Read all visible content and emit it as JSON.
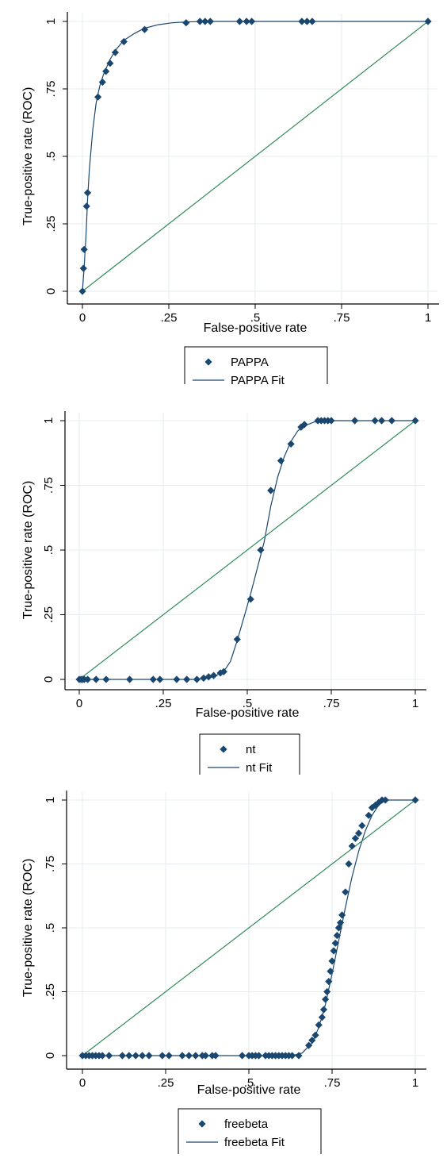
{
  "chart_data": [
    {
      "type": "scatter",
      "xlabel": "False-positive rate",
      "ylabel": "True-positive rate (ROC)",
      "xlim": [
        0,
        1
      ],
      "ylim": [
        0,
        1
      ],
      "x_ticks": [
        "0",
        ".25",
        ".5",
        ".75",
        "1"
      ],
      "y_ticks": [
        "0",
        ".25",
        ".5",
        ".75",
        "1"
      ],
      "grid": true,
      "legend_position": "bottom",
      "series": [
        {
          "name": "PAPPA",
          "kind": "points",
          "marker": "diamond",
          "color": "#1a476f",
          "x": [
            0,
            0.003,
            0.005,
            0.012,
            0.015,
            0.045,
            0.058,
            0.068,
            0.08,
            0.095,
            0.12,
            0.18,
            0.3,
            0.34,
            0.355,
            0.37,
            0.455,
            0.475,
            0.49,
            0.635,
            0.65,
            0.665,
            1.0
          ],
          "y": [
            0,
            0.085,
            0.155,
            0.315,
            0.365,
            0.72,
            0.775,
            0.815,
            0.845,
            0.885,
            0.925,
            0.97,
            0.995,
            1,
            1,
            1,
            1,
            1,
            1,
            1,
            1,
            1,
            1
          ]
        },
        {
          "name": "PAPPA Fit",
          "kind": "line",
          "color": "#1a476f",
          "x": [
            0,
            0.005,
            0.01,
            0.015,
            0.02,
            0.03,
            0.04,
            0.05,
            0.06,
            0.07,
            0.08,
            0.1,
            0.12,
            0.15,
            0.18,
            0.22,
            0.26,
            0.3,
            0.35,
            1.0
          ],
          "y": [
            0,
            0.09,
            0.2,
            0.34,
            0.45,
            0.6,
            0.7,
            0.76,
            0.8,
            0.83,
            0.86,
            0.9,
            0.93,
            0.955,
            0.975,
            0.988,
            0.995,
            0.998,
            1,
            1
          ]
        },
        {
          "name": "diagonal",
          "kind": "line",
          "color": "#2e8b57",
          "x": [
            0,
            1
          ],
          "y": [
            0,
            1
          ]
        }
      ]
    },
    {
      "type": "scatter",
      "xlabel": "False-positive rate",
      "ylabel": "True-positive rate (ROC)",
      "xlim": [
        0,
        1
      ],
      "ylim": [
        0,
        1
      ],
      "x_ticks": [
        "0",
        ".25",
        ".5",
        ".75",
        "1"
      ],
      "y_ticks": [
        "0",
        ".25",
        ".5",
        ".75",
        "1"
      ],
      "grid": true,
      "legend_position": "bottom",
      "series": [
        {
          "name": "nt",
          "kind": "points",
          "marker": "diamond",
          "color": "#1a476f",
          "x": [
            0,
            0.005,
            0.01,
            0.015,
            0.025,
            0.05,
            0.08,
            0.15,
            0.22,
            0.24,
            0.29,
            0.32,
            0.35,
            0.37,
            0.385,
            0.4,
            0.42,
            0.43,
            0.47,
            0.51,
            0.54,
            0.57,
            0.6,
            0.63,
            0.66,
            0.67,
            0.71,
            0.72,
            0.73,
            0.74,
            0.75,
            0.82,
            0.88,
            0.9,
            0.93,
            1.0
          ],
          "y": [
            0,
            0,
            0,
            0,
            0,
            0,
            0,
            0,
            0,
            0,
            0,
            0,
            0,
            0.005,
            0.01,
            0.015,
            0.025,
            0.03,
            0.155,
            0.31,
            0.5,
            0.73,
            0.845,
            0.91,
            0.975,
            0.985,
            1,
            1,
            1,
            1,
            1,
            1,
            1,
            1,
            1,
            1
          ]
        },
        {
          "name": "nt Fit",
          "kind": "line",
          "color": "#1a476f",
          "x": [
            0,
            0.35,
            0.4,
            0.43,
            0.45,
            0.47,
            0.49,
            0.51,
            0.53,
            0.55,
            0.57,
            0.59,
            0.61,
            0.63,
            0.65,
            0.67,
            0.7,
            0.74,
            1.0
          ],
          "y": [
            0,
            0,
            0.01,
            0.03,
            0.07,
            0.15,
            0.24,
            0.33,
            0.43,
            0.53,
            0.67,
            0.78,
            0.86,
            0.92,
            0.96,
            0.98,
            0.995,
            1,
            1
          ]
        },
        {
          "name": "diagonal",
          "kind": "line",
          "color": "#2e8b57",
          "x": [
            0,
            1
          ],
          "y": [
            0,
            1
          ]
        }
      ]
    },
    {
      "type": "scatter",
      "xlabel": "False-positive rate",
      "ylabel": "True-positive rate (ROC)",
      "xlim": [
        0,
        1
      ],
      "ylim": [
        0,
        1
      ],
      "x_ticks": [
        "0",
        ".25",
        ".5",
        ".75",
        "1"
      ],
      "y_ticks": [
        "0",
        ".25",
        ".5",
        ".75",
        "1"
      ],
      "grid": true,
      "legend_position": "bottom",
      "series": [
        {
          "name": "freebeta",
          "kind": "points",
          "marker": "diamond",
          "color": "#1a476f",
          "x": [
            0,
            0.01,
            0.02,
            0.03,
            0.04,
            0.05,
            0.06,
            0.08,
            0.12,
            0.14,
            0.16,
            0.18,
            0.2,
            0.24,
            0.26,
            0.3,
            0.32,
            0.34,
            0.36,
            0.37,
            0.39,
            0.4,
            0.48,
            0.5,
            0.51,
            0.52,
            0.53,
            0.55,
            0.56,
            0.57,
            0.58,
            0.59,
            0.6,
            0.61,
            0.62,
            0.63,
            0.65,
            0.68,
            0.69,
            0.7,
            0.71,
            0.72,
            0.725,
            0.73,
            0.735,
            0.74,
            0.745,
            0.75,
            0.755,
            0.76,
            0.765,
            0.77,
            0.775,
            0.78,
            0.79,
            0.8,
            0.81,
            0.82,
            0.83,
            0.84,
            0.86,
            0.87,
            0.88,
            0.89,
            0.9,
            0.91,
            1.0
          ],
          "y": [
            0,
            0,
            0,
            0,
            0,
            0,
            0,
            0,
            0,
            0,
            0,
            0,
            0,
            0,
            0,
            0,
            0,
            0,
            0,
            0,
            0,
            0,
            0,
            0,
            0,
            0,
            0,
            0,
            0,
            0,
            0,
            0,
            0,
            0,
            0,
            0,
            0,
            0.04,
            0.06,
            0.08,
            0.12,
            0.15,
            0.18,
            0.22,
            0.25,
            0.29,
            0.33,
            0.37,
            0.41,
            0.44,
            0.47,
            0.5,
            0.52,
            0.55,
            0.64,
            0.75,
            0.82,
            0.85,
            0.87,
            0.9,
            0.94,
            0.97,
            0.98,
            0.99,
            1,
            1,
            1
          ]
        },
        {
          "name": "freebeta Fit",
          "kind": "line",
          "color": "#1a476f",
          "x": [
            0,
            0.63,
            0.66,
            0.69,
            0.71,
            0.73,
            0.75,
            0.77,
            0.79,
            0.81,
            0.83,
            0.85,
            0.87,
            0.89,
            0.91,
            1.0
          ],
          "y": [
            0,
            0,
            0.01,
            0.05,
            0.11,
            0.2,
            0.32,
            0.45,
            0.58,
            0.7,
            0.8,
            0.88,
            0.94,
            0.98,
            1,
            1
          ]
        },
        {
          "name": "diagonal",
          "kind": "line",
          "color": "#2e8b57",
          "x": [
            0,
            1
          ],
          "y": [
            0,
            1
          ]
        }
      ]
    }
  ]
}
